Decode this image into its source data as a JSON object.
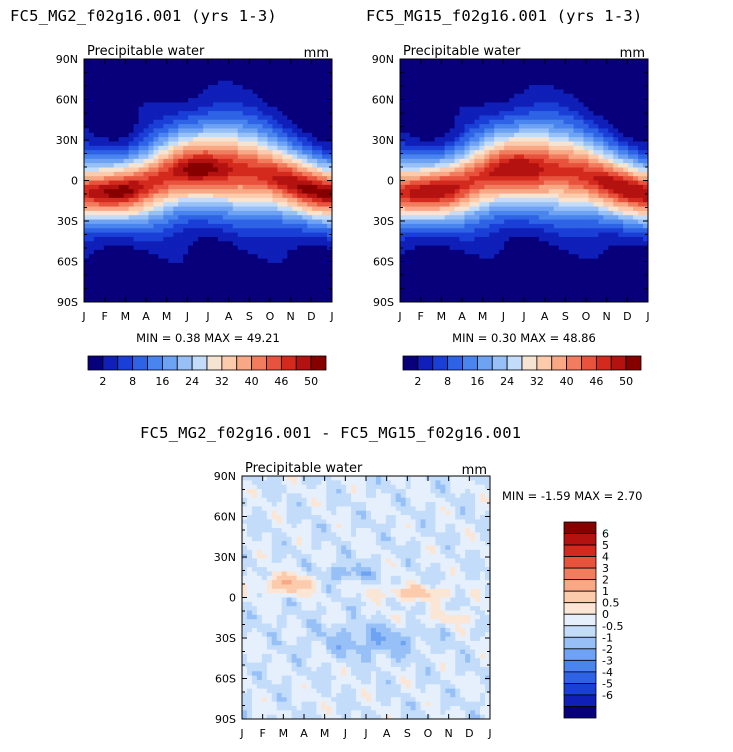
{
  "colors": {
    "pw_scale": [
      "#08007a",
      "#0f1fb8",
      "#1a3fd7",
      "#2e63e6",
      "#4a84ee",
      "#6ea2f3",
      "#97c0f7",
      "#c2dcfa",
      "#f6e4d2",
      "#fccbac",
      "#f8a884",
      "#f27d5e",
      "#e8533d",
      "#d42a1e",
      "#b41210",
      "#870000"
    ],
    "diff_scale": [
      "#08007a",
      "#0f1fb8",
      "#1a3fd7",
      "#2e63e6",
      "#4a84ee",
      "#6ea2f3",
      "#97c0f7",
      "#c2dcfa",
      "#e6f0fc",
      "#fbe6d6",
      "#fccbac",
      "#f8a884",
      "#f27d5e",
      "#e8533d",
      "#d42a1e",
      "#b41210",
      "#870000"
    ]
  },
  "chart_data": [
    {
      "type": "heatmap",
      "title": "FC5_MG2_f02g16.001 (yrs 1-3)",
      "subtitle": "Precipitable water",
      "units": "mm",
      "x_ticks": [
        "J",
        "F",
        "M",
        "A",
        "M",
        "J",
        "J",
        "A",
        "S",
        "O",
        "N",
        "D",
        "J"
      ],
      "y_ticks": [
        "90N",
        "60N",
        "30N",
        "0",
        "30S",
        "60S",
        "90S"
      ],
      "y_values": [
        90,
        60,
        30,
        0,
        -30,
        -60,
        -90
      ],
      "min_label": "MIN =",
      "min_value": "0.38",
      "max_label": "MAX =",
      "max_value": "49.21",
      "colorbar_labels": [
        "2",
        "8",
        "16",
        "24",
        "32",
        "40",
        "46",
        "50"
      ],
      "field": {
        "equator_peak": 49,
        "pole_value": 1,
        "seasonal_shift_deg": 10,
        "peak_month": "Jul"
      }
    },
    {
      "type": "heatmap",
      "title": "FC5_MG15_f02g16.001 (yrs 1-3)",
      "subtitle": "Precipitable water",
      "units": "mm",
      "x_ticks": [
        "J",
        "F",
        "M",
        "A",
        "M",
        "J",
        "J",
        "A",
        "S",
        "O",
        "N",
        "D",
        "J"
      ],
      "y_ticks": [
        "90N",
        "60N",
        "30N",
        "0",
        "30S",
        "60S",
        "90S"
      ],
      "y_values": [
        90,
        60,
        30,
        0,
        -30,
        -60,
        -90
      ],
      "min_label": "MIN =",
      "min_value": "0.30",
      "max_label": "MAX =",
      "max_value": "48.86",
      "colorbar_labels": [
        "2",
        "8",
        "16",
        "24",
        "32",
        "40",
        "46",
        "50"
      ],
      "field": {
        "equator_peak": 48.5,
        "pole_value": 0.8,
        "seasonal_shift_deg": 10,
        "peak_month": "Jul"
      }
    },
    {
      "type": "heatmap",
      "title": "FC5_MG2_f02g16.001 - FC5_MG15_f02g16.001",
      "subtitle": "Precipitable water",
      "units": "mm",
      "x_ticks": [
        "J",
        "F",
        "M",
        "A",
        "M",
        "J",
        "J",
        "A",
        "S",
        "O",
        "N",
        "D",
        "J"
      ],
      "y_ticks": [
        "90N",
        "60N",
        "30N",
        "0",
        "30S",
        "60S",
        "90S"
      ],
      "y_values": [
        90,
        60,
        30,
        0,
        -30,
        -60,
        -90
      ],
      "min_label": "MIN =",
      "min_value": "-1.59",
      "max_label": "MAX =",
      "max_value": "2.70",
      "colorbar_labels": [
        "6",
        "5",
        "4",
        "3",
        "2",
        "1",
        "0.5",
        "0",
        "-0.5",
        "-1",
        "-2",
        "-3",
        "-4",
        "-5",
        "-6"
      ],
      "field": {
        "min": -1.59,
        "max": 2.7
      }
    }
  ]
}
